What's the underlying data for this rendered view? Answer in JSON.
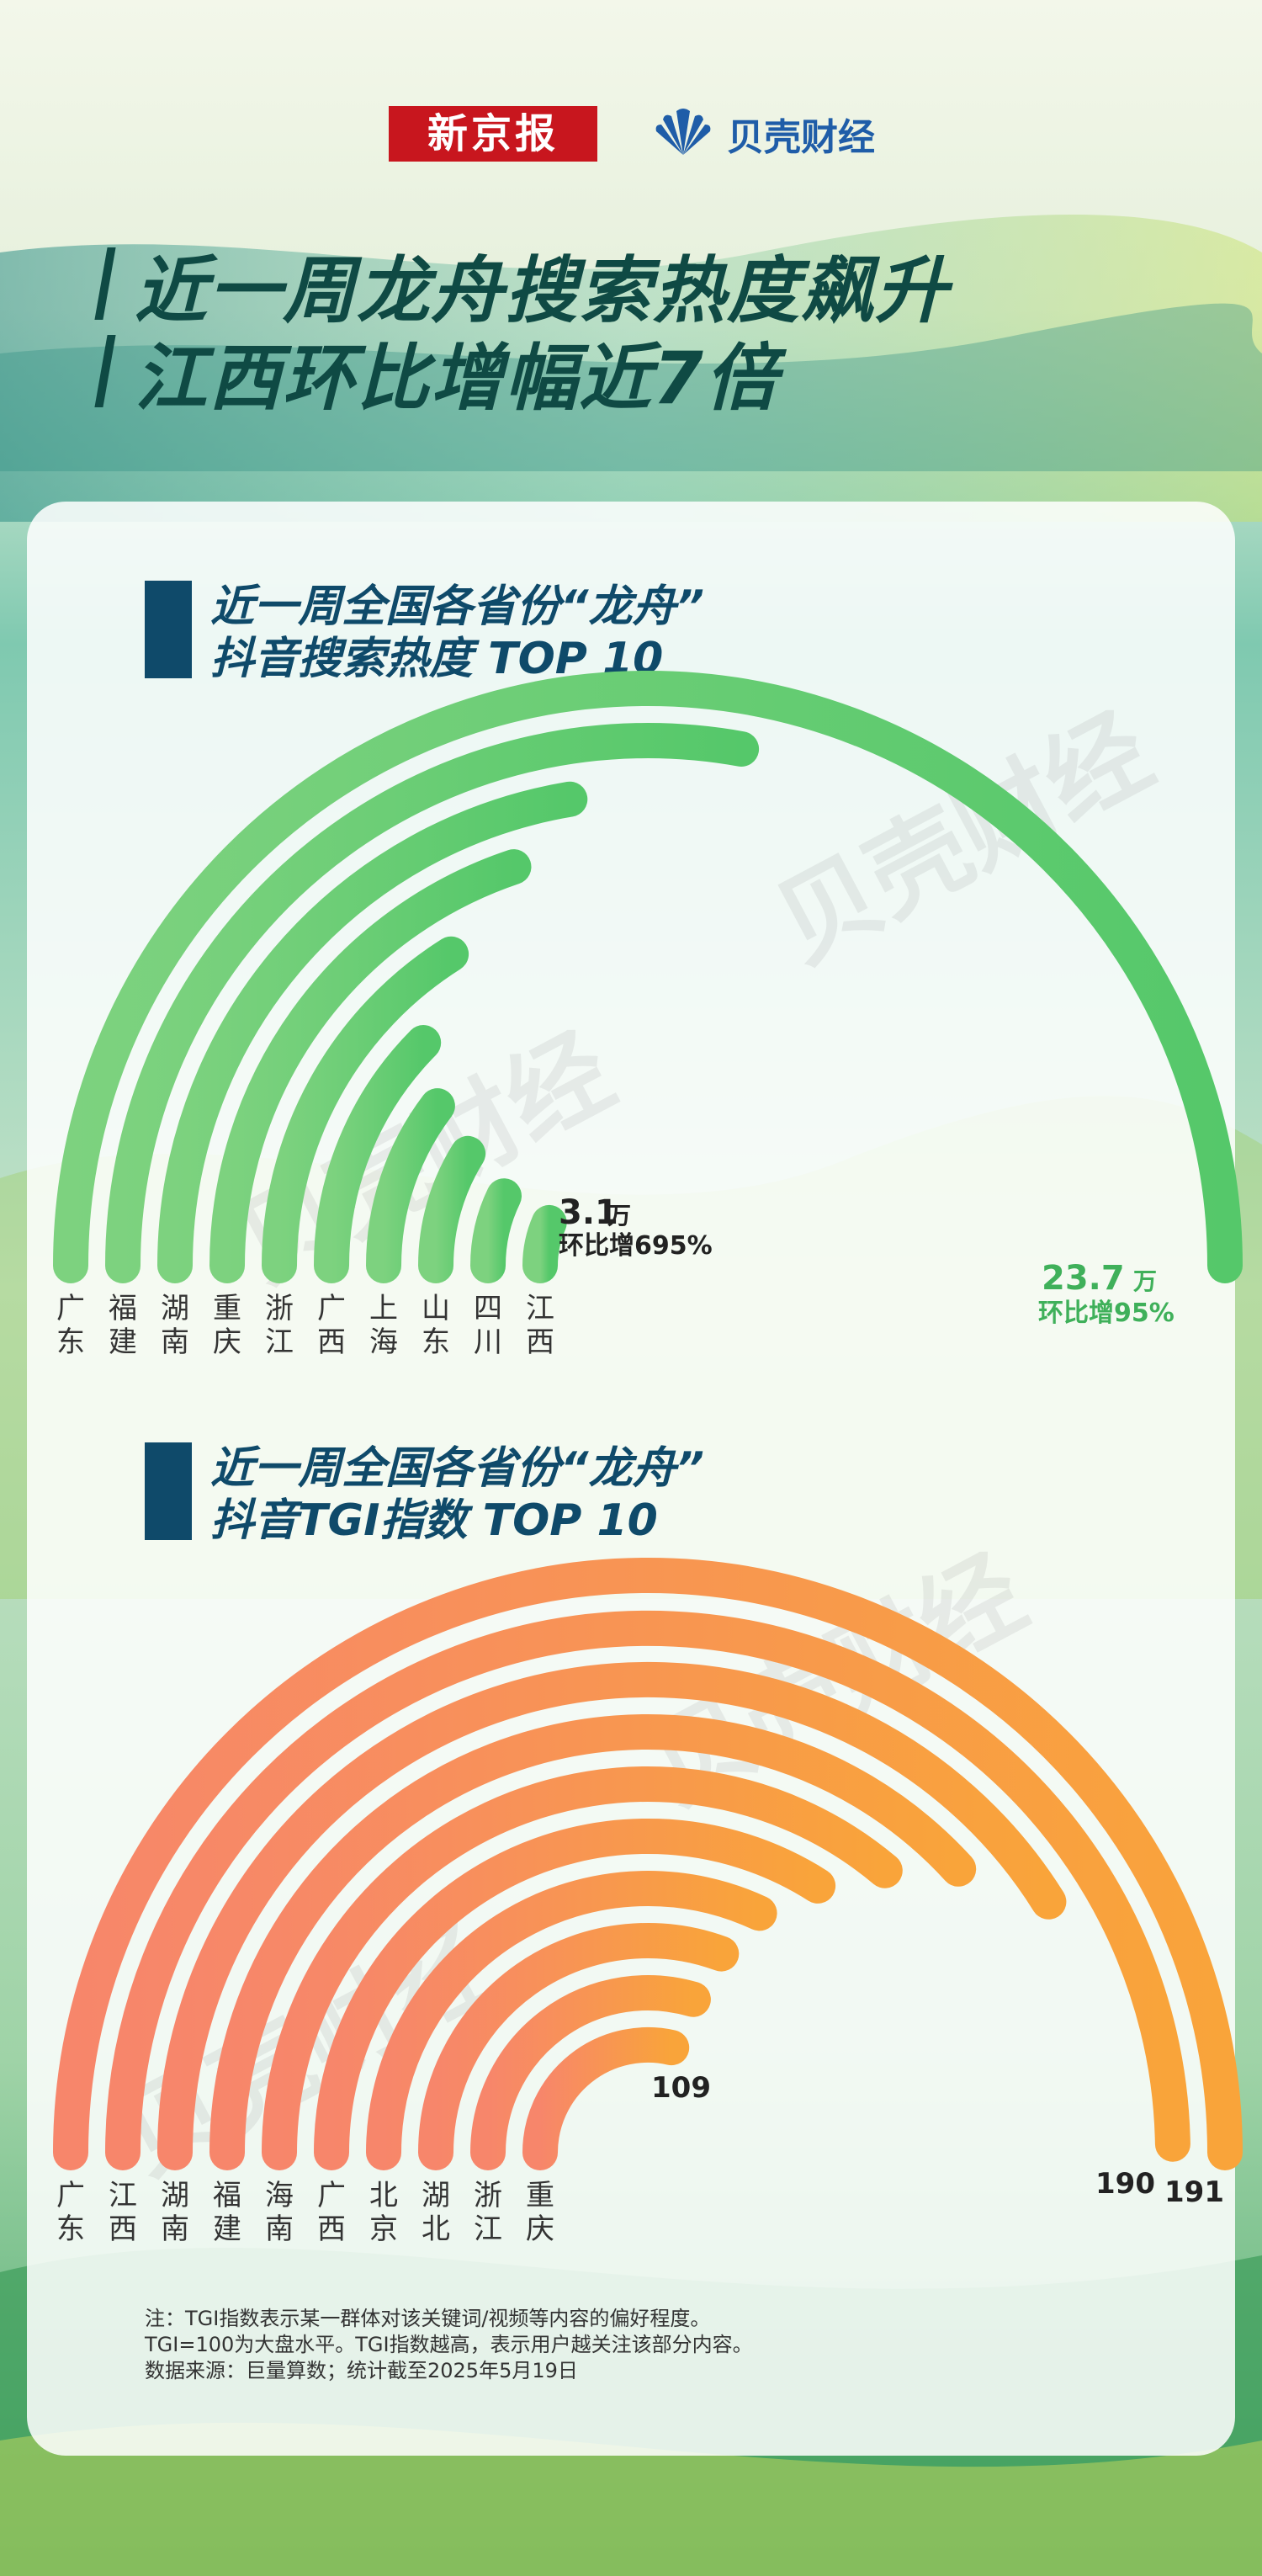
{
  "header": {
    "logo_xjb": "新京报",
    "logo_bk": "贝壳财经",
    "title_line1": "近一周龙舟搜索热度飙升",
    "title_line2": "江西环比增幅近7倍"
  },
  "colors": {
    "green_start": "#7dd27f",
    "green_end": "#55c86a",
    "orange_start": "#f7866b",
    "orange_end": "#f9a43a",
    "title": "#0f4a44",
    "section": "#0f4a6a",
    "green_label": "#3fb05a"
  },
  "watermark": "贝壳财经",
  "chart_data": [
    {
      "type": "radial-bar",
      "title_line1": "近一周全国各省份“龙舟”",
      "title_line2": "抖音搜索热度 TOP 10",
      "categories": [
        "广东",
        "福建",
        "湖南",
        "重庆",
        "浙江",
        "广西",
        "上海",
        "山东",
        "四川",
        "江西"
      ],
      "values": [
        23.7,
        13.2,
        10.6,
        9.4,
        7.6,
        5.9,
        4.9,
        4.2,
        3.4,
        3.1
      ],
      "unit": "万",
      "annotations": [
        {
          "category": "广东",
          "value_text": "23.7",
          "unit": "万",
          "sub": "环比增95%"
        },
        {
          "category": "江西",
          "value_text": "3.1",
          "unit": "万",
          "sub": "环比增695%"
        }
      ]
    },
    {
      "type": "radial-bar",
      "title_line1": "近一周全国各省份“龙舟”",
      "title_line2": "抖音TGI指数 TOP 10",
      "categories": [
        "广东",
        "江西",
        "湖南",
        "福建",
        "海南",
        "广西",
        "北京",
        "湖北",
        "浙江",
        "重庆"
      ],
      "values": [
        191,
        190,
        157,
        146,
        138,
        130,
        122,
        117,
        113,
        109
      ],
      "annotations": [
        {
          "category": "广东",
          "value_text": "191"
        },
        {
          "category": "江西",
          "value_text": "190"
        },
        {
          "category": "重庆",
          "value_text": "109"
        }
      ]
    }
  ],
  "note": {
    "line1": "注：TGI指数表示某一群体对该关键词/视频等内容的偏好程度。",
    "line2": "TGI=100为大盘水平。TGI指数越高，表示用户越关注该部分内容。",
    "line3": "数据来源：巨量算数；统计截至2025年5月19日"
  }
}
